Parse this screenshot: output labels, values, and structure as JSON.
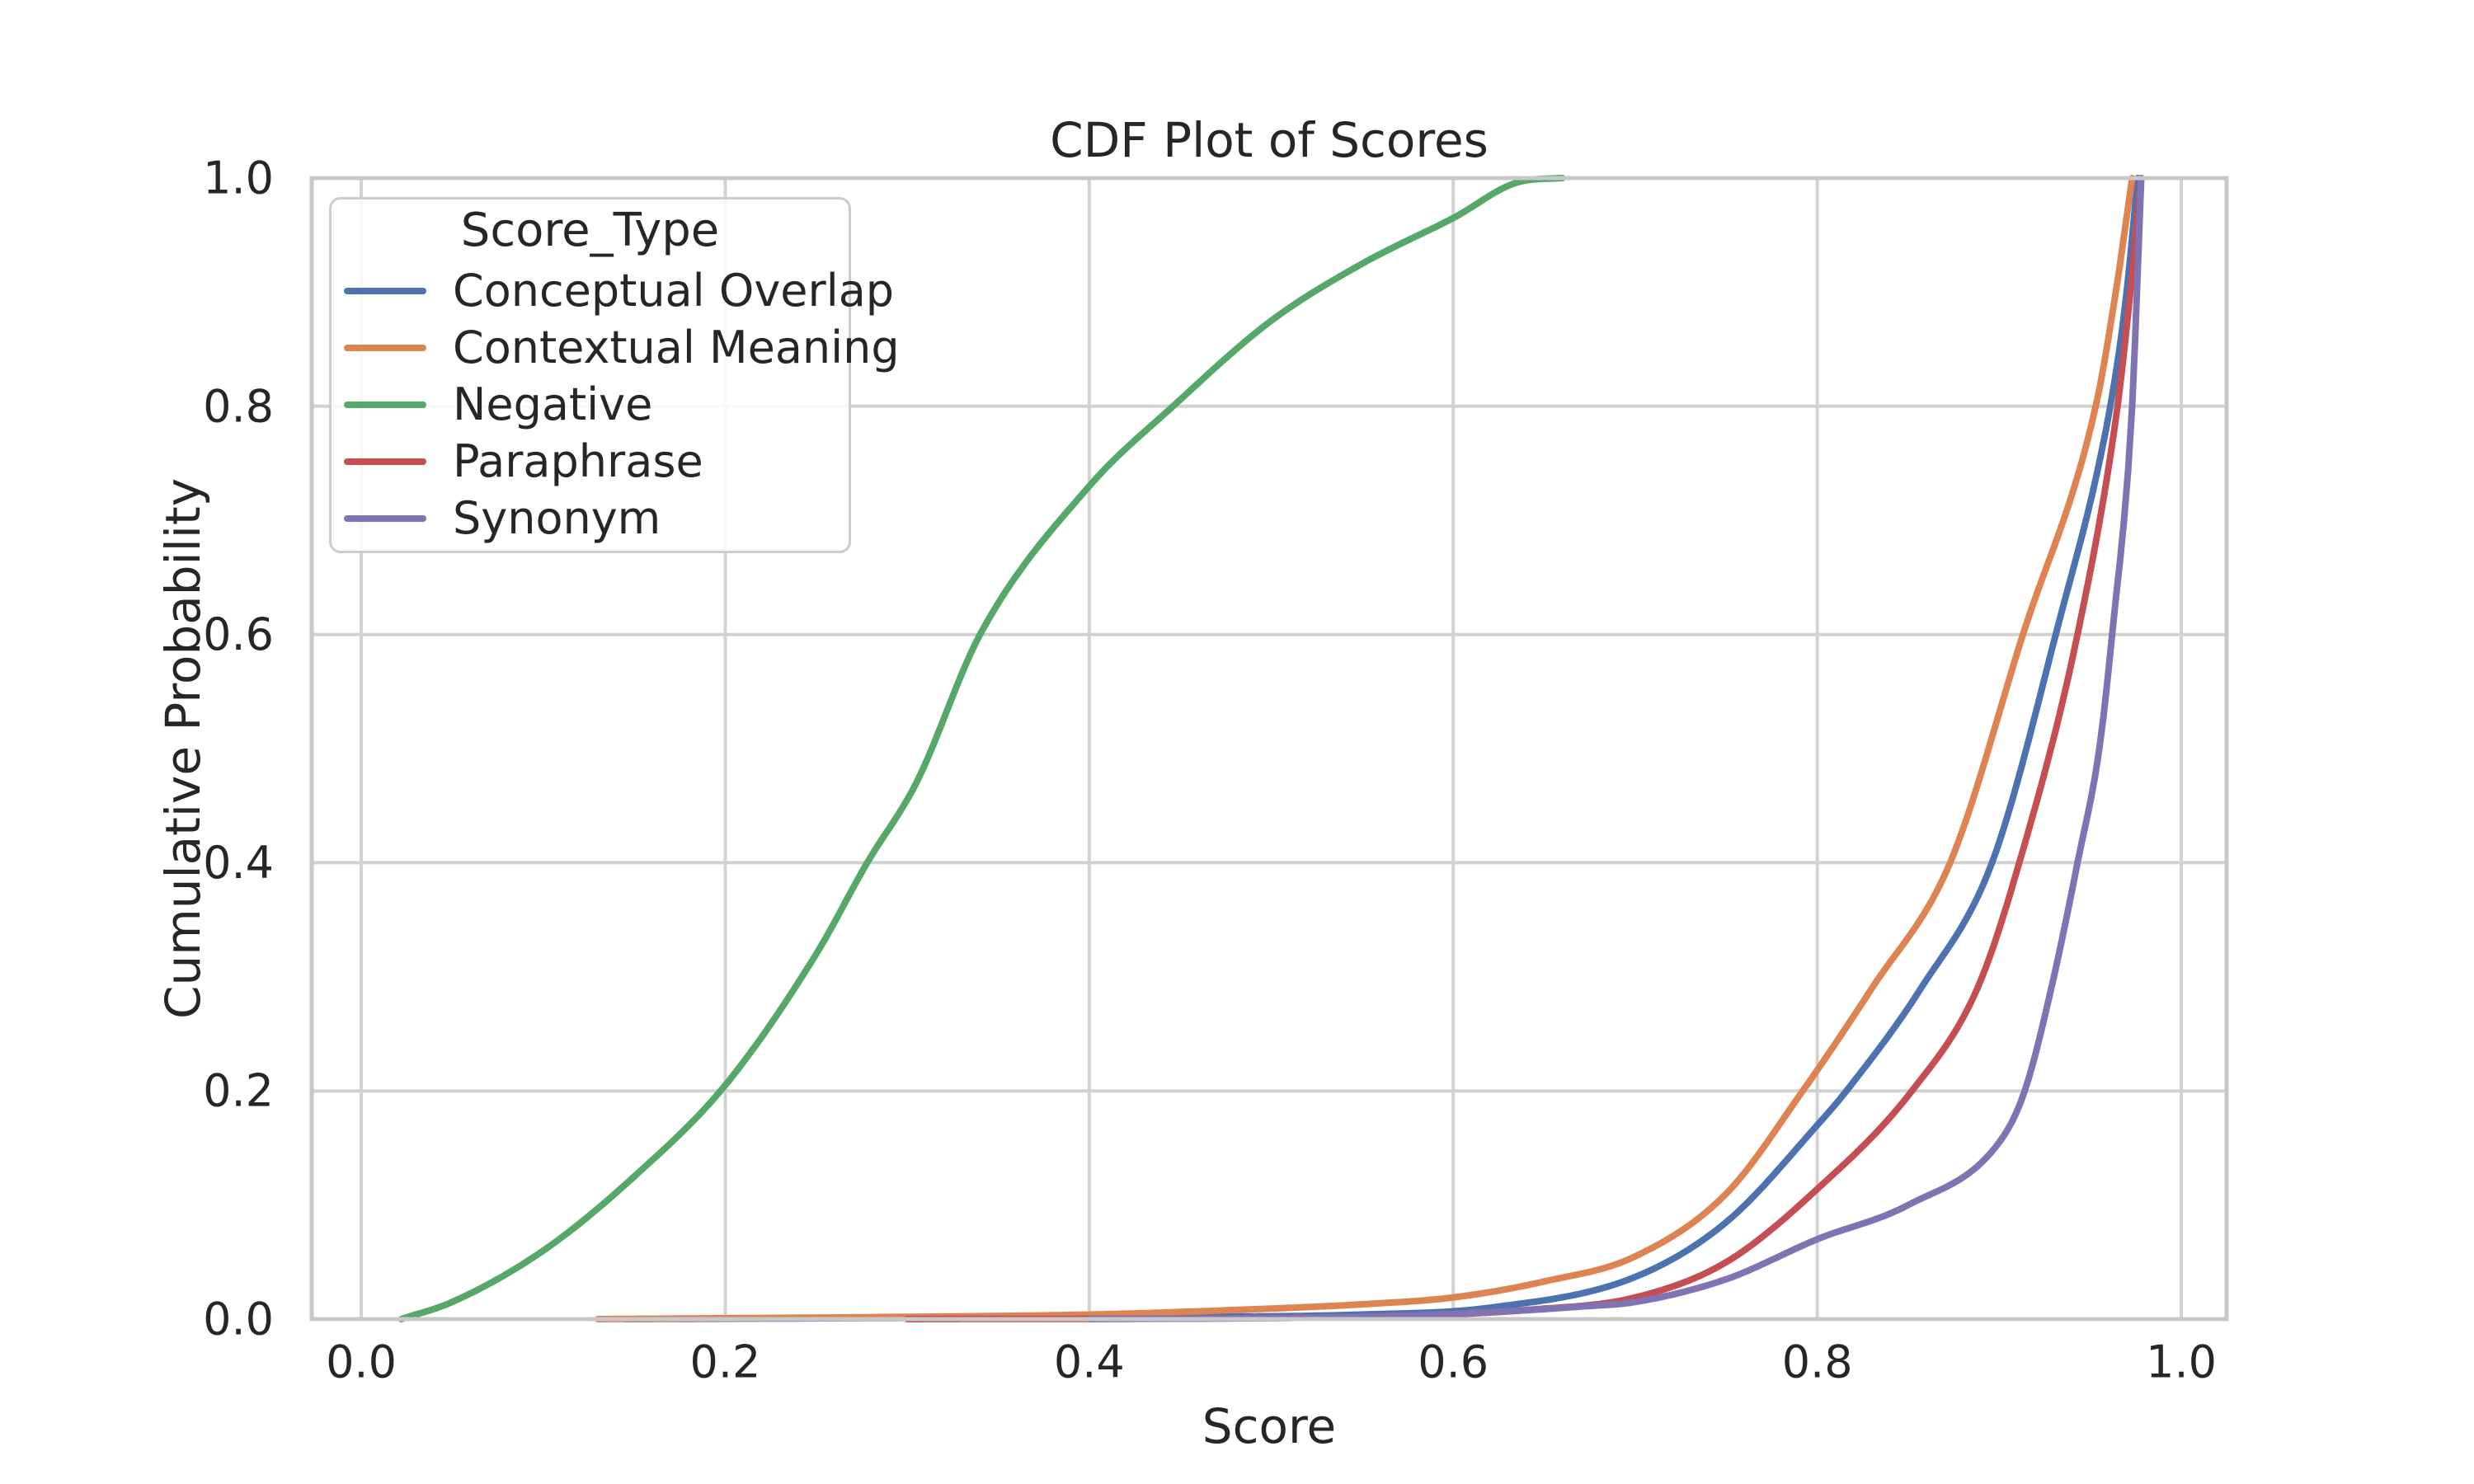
{
  "style": {
    "background": "#ffffff",
    "grid_color": "#d2d2d2",
    "spine_color": "#c8c8c8",
    "text_color": "#262626"
  },
  "chart_data": {
    "type": "line",
    "title": "CDF Plot of Scores",
    "xlabel": "Score",
    "ylabel": "Cumulative Probability",
    "legend_title": "Score_Type",
    "legend_position": "upper left",
    "grid": true,
    "xlim": [
      -0.0272,
      1.0249
    ],
    "ylim": [
      0,
      1
    ],
    "xticks": {
      "values": [
        0.0,
        0.2,
        0.4,
        0.6,
        0.8,
        1.0
      ],
      "labels": [
        "0.0",
        "0.2",
        "0.4",
        "0.6",
        "0.8",
        "1.0"
      ]
    },
    "yticks": {
      "values": [
        0.0,
        0.2,
        0.4,
        0.6,
        0.8,
        1.0
      ],
      "labels": [
        "0.0",
        "0.2",
        "0.4",
        "0.6",
        "0.8",
        "1.0"
      ]
    },
    "series": [
      {
        "name": "Conceptual Overlap",
        "color": "#4C72B0",
        "points": [
          [
            0.145,
            0.0
          ],
          [
            0.3,
            0.001
          ],
          [
            0.45,
            0.002
          ],
          [
            0.55,
            0.004
          ],
          [
            0.62,
            0.01
          ],
          [
            0.7,
            0.037
          ],
          [
            0.75,
            0.085
          ],
          [
            0.8,
            0.17
          ],
          [
            0.816,
            0.2
          ],
          [
            0.857,
            0.29
          ],
          [
            0.896,
            0.4
          ],
          [
            0.931,
            0.6
          ],
          [
            0.961,
            0.8
          ],
          [
            0.97,
            0.9
          ],
          [
            0.976,
            1.0
          ]
        ]
      },
      {
        "name": "Contextual Meaning",
        "color": "#DD8452",
        "points": [
          [
            0.13,
            0.0
          ],
          [
            0.3,
            0.002
          ],
          [
            0.4,
            0.004
          ],
          [
            0.48,
            0.008
          ],
          [
            0.55,
            0.013
          ],
          [
            0.6,
            0.019
          ],
          [
            0.65,
            0.033
          ],
          [
            0.7,
            0.055
          ],
          [
            0.75,
            0.11
          ],
          [
            0.792,
            0.2
          ],
          [
            0.83,
            0.29
          ],
          [
            0.873,
            0.4
          ],
          [
            0.913,
            0.6
          ],
          [
            0.953,
            0.8
          ],
          [
            0.964,
            0.9
          ],
          [
            0.973,
            1.0
          ]
        ]
      },
      {
        "name": "Negative",
        "color": "#55A868",
        "points": [
          [
            0.022,
            0.0
          ],
          [
            0.05,
            0.015
          ],
          [
            0.1,
            0.06
          ],
          [
            0.15,
            0.125
          ],
          [
            0.2,
            0.205
          ],
          [
            0.25,
            0.32
          ],
          [
            0.278,
            0.4
          ],
          [
            0.305,
            0.47
          ],
          [
            0.34,
            0.6
          ],
          [
            0.4,
            0.73
          ],
          [
            0.446,
            0.8
          ],
          [
            0.5,
            0.875
          ],
          [
            0.55,
            0.925
          ],
          [
            0.6,
            0.965
          ],
          [
            0.637,
            0.997
          ],
          [
            0.66,
            1.0
          ]
        ]
      },
      {
        "name": "Paraphrase",
        "color": "#C44E52",
        "points": [
          [
            0.3,
            0.0
          ],
          [
            0.5,
            0.001
          ],
          [
            0.58,
            0.003
          ],
          [
            0.64,
            0.008
          ],
          [
            0.7,
            0.019
          ],
          [
            0.75,
            0.05
          ],
          [
            0.8,
            0.114
          ],
          [
            0.852,
            0.2
          ],
          [
            0.888,
            0.29
          ],
          [
            0.911,
            0.4
          ],
          [
            0.943,
            0.6
          ],
          [
            0.965,
            0.8
          ],
          [
            0.972,
            0.9
          ],
          [
            0.978,
            1.0
          ]
        ]
      },
      {
        "name": "Synonym",
        "color": "#8172B3",
        "points": [
          [
            0.4,
            0.0
          ],
          [
            0.55,
            0.002
          ],
          [
            0.62,
            0.006
          ],
          [
            0.67,
            0.011
          ],
          [
            0.7,
            0.015
          ],
          [
            0.75,
            0.035
          ],
          [
            0.8,
            0.07
          ],
          [
            0.85,
            0.1
          ],
          [
            0.9,
            0.155
          ],
          [
            0.914,
            0.2
          ],
          [
            0.93,
            0.3
          ],
          [
            0.943,
            0.4
          ],
          [
            0.955,
            0.5
          ],
          [
            0.962,
            0.6
          ],
          [
            0.973,
            0.8
          ],
          [
            0.978,
            1.0
          ]
        ]
      }
    ]
  }
}
